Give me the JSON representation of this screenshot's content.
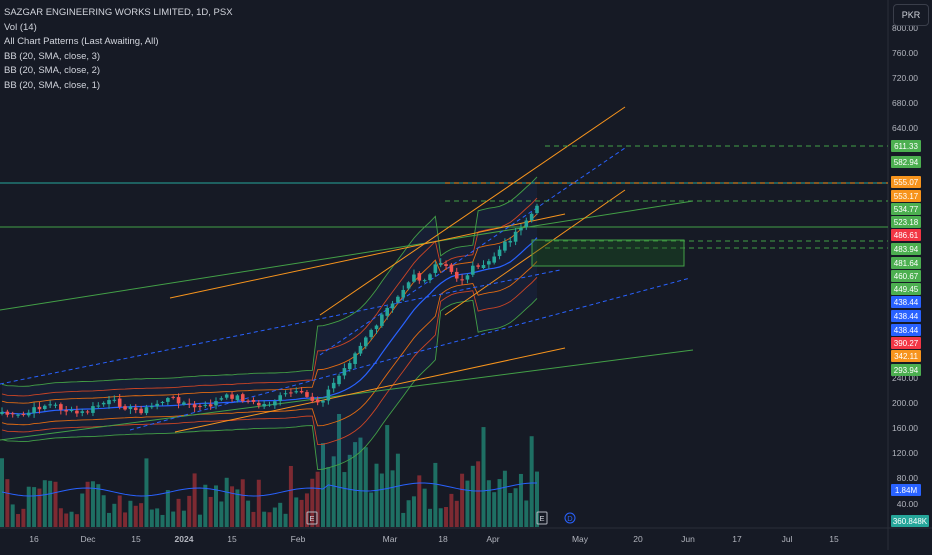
{
  "legend": {
    "title": "SAZGAR ENGINEERING WORKS LIMITED, 1D, PSX",
    "vol": "Vol (14)",
    "patterns": "All Chart Patterns (Last Awaiting, All)",
    "bb3": "BB (20, SMA, close, 3)",
    "bb2": "BB (20, SMA, close, 2)",
    "bb1": "BB (20, SMA, close, 1)"
  },
  "currency": "PKR",
  "chart_data": {
    "type": "candlestick",
    "title": "SAZGAR ENGINEERING WORKS LIMITED, 1D, PSX",
    "y_ticks": [
      "800.00",
      "760.00",
      "720.00",
      "680.00",
      "640.00",
      "240.00",
      "200.00",
      "160.00",
      "120.00",
      "80.00",
      "40.00"
    ],
    "x_ticks": [
      "16",
      "Dec",
      "15",
      "2024",
      "15",
      "Feb",
      "Mar",
      "18",
      "Apr",
      "May",
      "20",
      "Jun",
      "17",
      "Jul",
      "15"
    ],
    "price_labels": [
      {
        "text": "611.33",
        "color": "#4caf50"
      },
      {
        "text": "582.94",
        "color": "#4caf50"
      },
      {
        "text": "555.07",
        "color": "#f7941d"
      },
      {
        "text": "553.17",
        "color": "#f7941d"
      },
      {
        "text": "534.77",
        "color": "#4caf50"
      },
      {
        "text": "523.18",
        "color": "#4caf50"
      },
      {
        "text": "486.61",
        "color": "#f23645"
      },
      {
        "text": "483.94",
        "color": "#4caf50"
      },
      {
        "text": "481.64",
        "color": "#4caf50"
      },
      {
        "text": "460.67",
        "color": "#4caf50"
      },
      {
        "text": "449.45",
        "color": "#4caf50"
      },
      {
        "text": "438.44",
        "color": "#2962ff"
      },
      {
        "text": "438.44",
        "color": "#2962ff"
      },
      {
        "text": "438.44",
        "color": "#2962ff"
      },
      {
        "text": "390.27",
        "color": "#f23645"
      },
      {
        "text": "342.11",
        "color": "#f7941d"
      },
      {
        "text": "293.94",
        "color": "#4caf50"
      }
    ],
    "volume_labels": [
      {
        "text": "1.84M",
        "color": "#2962ff"
      },
      {
        "text": "360.848K",
        "color": "#26a69a"
      }
    ],
    "event_markers": [
      "E",
      "E",
      "D"
    ]
  }
}
